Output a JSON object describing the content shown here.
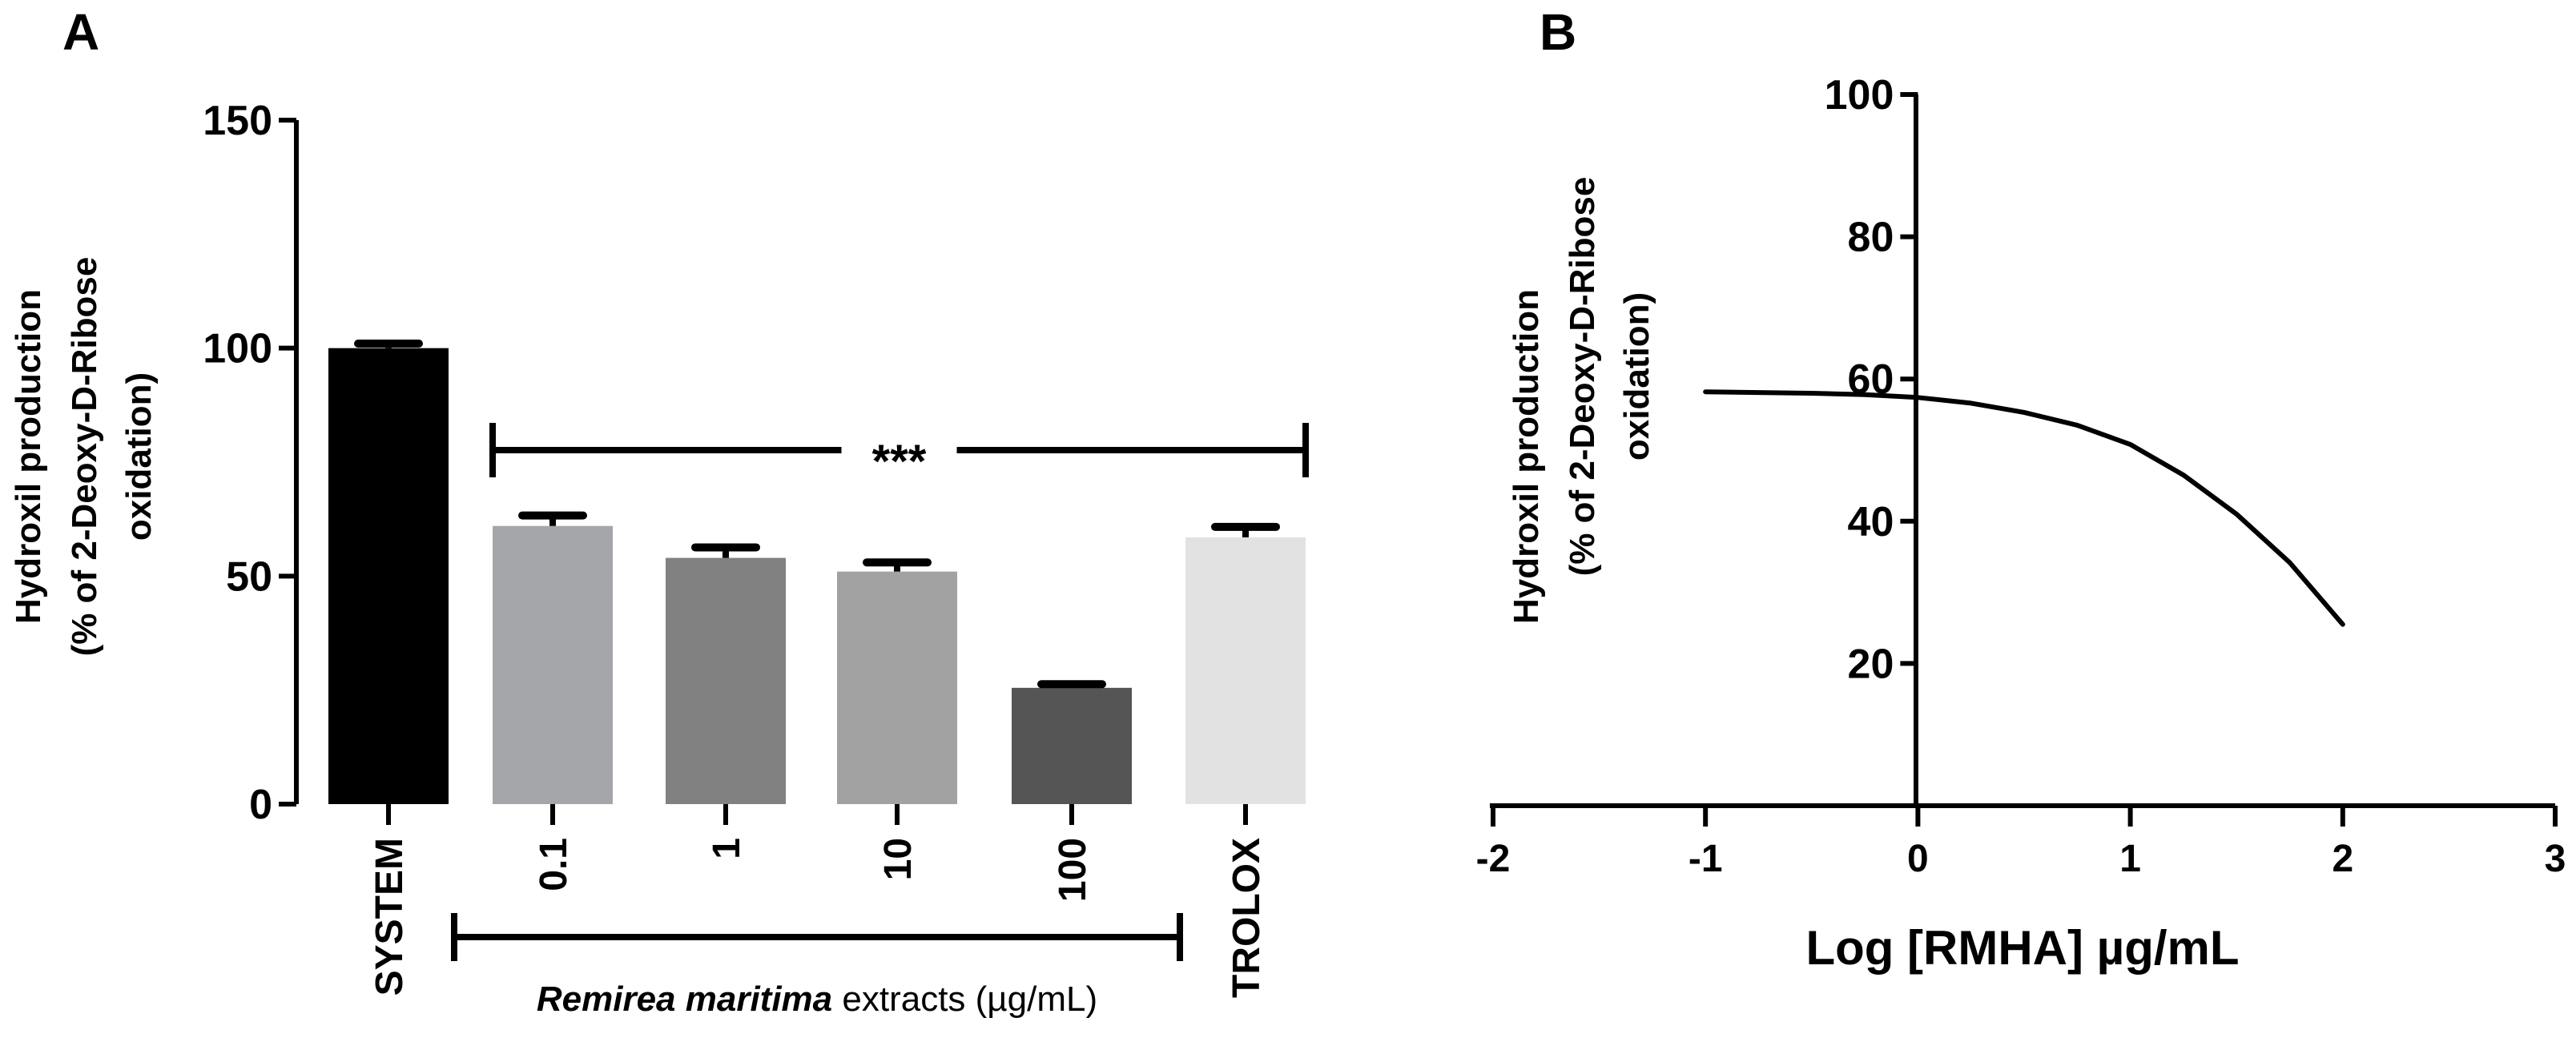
{
  "chart_data": [
    {
      "panel_label": "A",
      "type": "bar",
      "ylabel_lines": [
        "Hydroxil production",
        "(% of 2-Deoxy-D-Ribose",
        "oxidation)"
      ],
      "ylim": [
        0,
        150
      ],
      "yticks": [
        0,
        50,
        100,
        150
      ],
      "categories": [
        "SYSTEM",
        "0.1",
        "1",
        "10",
        "100",
        "TROLOX"
      ],
      "values": [
        100,
        61,
        54,
        51,
        25.5,
        58.5
      ],
      "errors": [
        1.0,
        2.3,
        2.3,
        2.0,
        0.8,
        2.3
      ],
      "bar_colors": [
        "#000000",
        "#a5a6aa",
        "#818181",
        "#a2a2a2",
        "#555555",
        "#e2e2e2"
      ],
      "significance": {
        "label": "***",
        "from_category": "0.1",
        "to_category": "TROLOX",
        "y": 78
      },
      "group_bracket": {
        "italic_text": "Remirea maritima",
        "text": " extracts (µg/mL)",
        "from_category": "SYSTEM",
        "to_category": "100"
      }
    },
    {
      "panel_label": "B",
      "type": "line",
      "ylabel_lines": [
        "Hydroxil production",
        "(% of 2-Deoxy-D-Ribose",
        "oxidation)"
      ],
      "xlabel": "Log [RMHA] µg/mL",
      "xlim": [
        -2,
        3
      ],
      "ylim": [
        0,
        100
      ],
      "xticks": [
        -2,
        -1,
        0,
        1,
        2,
        3
      ],
      "yticks": [
        20,
        40,
        60,
        80,
        100
      ],
      "series": [
        {
          "x": [
            -1,
            -0.75,
            -0.5,
            -0.25,
            0,
            0.25,
            0.5,
            0.75,
            1,
            1.25,
            1.5,
            1.75,
            2
          ],
          "y": [
            58.2,
            58.1,
            58.0,
            57.8,
            57.4,
            56.6,
            55.3,
            53.5,
            50.8,
            46.5,
            41.0,
            34.2,
            25.5
          ]
        }
      ]
    }
  ]
}
